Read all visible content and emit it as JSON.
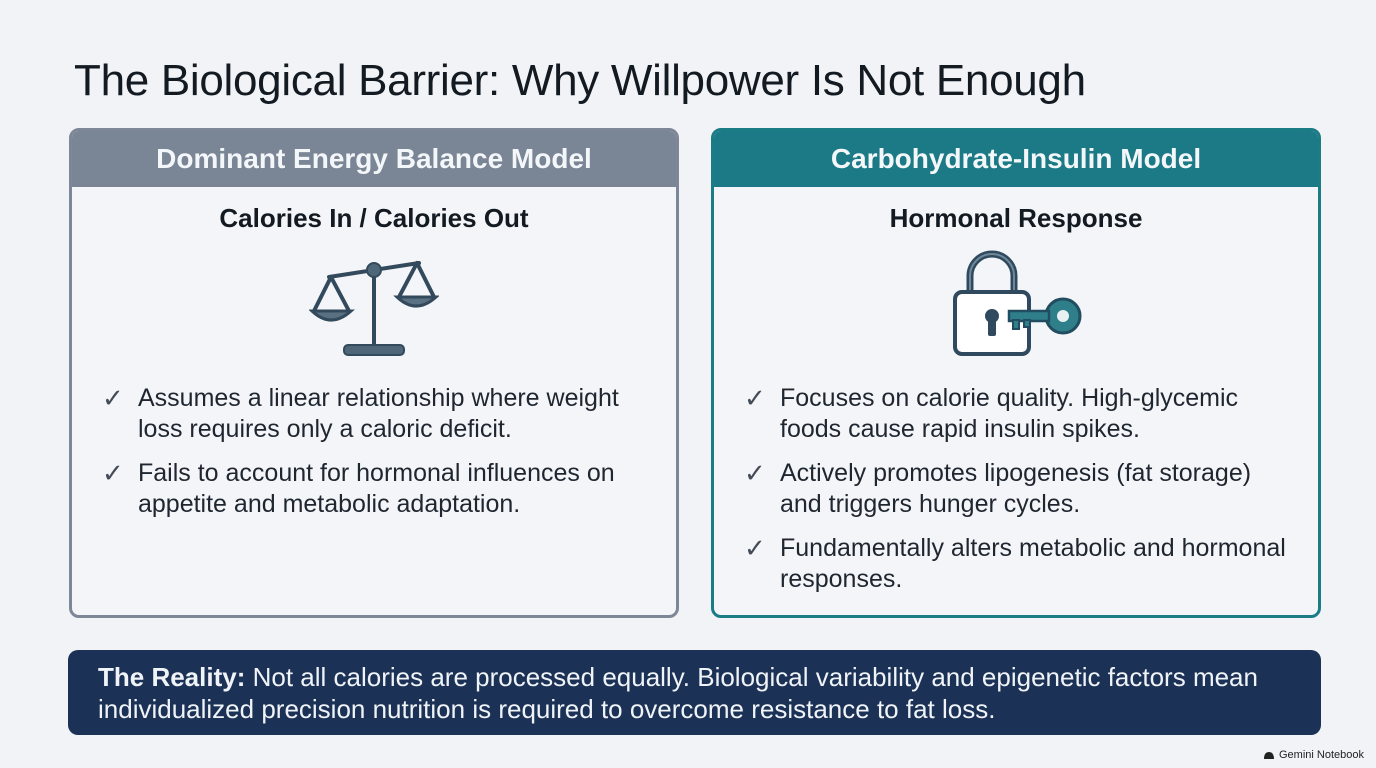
{
  "title": "The Biological Barrier: Why Willpower Is Not Enough",
  "left_card": {
    "header": "Dominant Energy Balance Model",
    "subtitle": "Calories In / Calories Out",
    "icon": "balance-scale-icon",
    "bullets": [
      "Assumes a linear relationship where weight loss requires only a caloric deficit.",
      "Fails to account for hormonal influences on appetite and metabolic adaptation."
    ]
  },
  "right_card": {
    "header": "Carbohydrate-Insulin Model",
    "subtitle": "Hormonal Response",
    "icon": "padlock-key-icon",
    "bullets": [
      "Focuses on calorie quality. High-glycemic foods cause rapid insulin spikes.",
      "Actively promotes lipogenesis (fat storage) and triggers hunger cycles.",
      "Fundamentally alters metabolic and hormonal responses."
    ]
  },
  "reality": {
    "label": "The Reality:",
    "text": " Not all calories are processed equally. Biological variability and epigenetic factors mean individualized precision nutrition is required to overcome resistance to fat loss."
  },
  "footer": {
    "brand": "Gemini Notebook"
  },
  "colors": {
    "left_accent": "#7a8596",
    "right_accent": "#1b7a85",
    "reality_bg": "#1b3256"
  }
}
